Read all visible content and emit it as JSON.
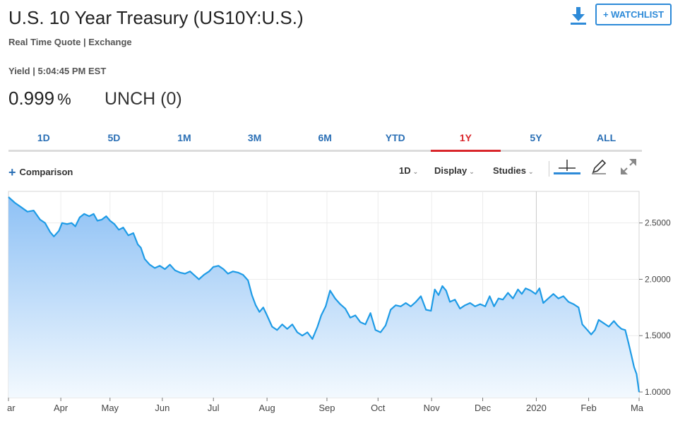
{
  "header": {
    "title": "U.S. 10 Year Treasury (US10Y:U.S.)",
    "subtitle": "Real Time Quote | Exchange",
    "watchlist_label": "+ WATCHLIST",
    "download_icon": "download-icon"
  },
  "quote": {
    "yield_time": "Yield | 5:04:45 PM EST",
    "price": "0.999",
    "unit": "%",
    "change": "UNCH (0)"
  },
  "tabs": [
    {
      "label": "1D"
    },
    {
      "label": "5D"
    },
    {
      "label": "1M"
    },
    {
      "label": "3M"
    },
    {
      "label": "6M"
    },
    {
      "label": "YTD"
    },
    {
      "label": "1Y",
      "active": true
    },
    {
      "label": "5Y"
    },
    {
      "label": "ALL"
    }
  ],
  "toolbar": {
    "comparison_label": "Comparison",
    "interval_label": "1D",
    "display_label": "Display",
    "studies_label": "Studies",
    "crosshair_icon": "crosshair-icon",
    "draw_icon": "pencil-icon",
    "expand_icon": "expand-icon"
  },
  "colors": {
    "line": "#1e9be6",
    "fill_top": "#8ec1f5",
    "fill_bottom": "#f3f9fe",
    "accent": "#2d8ad8",
    "active_tab": "#d9262b"
  },
  "chart_data": {
    "type": "area",
    "ylim": [
      0.95,
      2.78
    ],
    "yticks": [
      1.0,
      1.5,
      2.0,
      2.5
    ],
    "ytick_labels": [
      "1.0000",
      "1.5000",
      "2.0000",
      "2.5000"
    ],
    "xticks": [
      {
        "label": "ar",
        "t": 0
      },
      {
        "label": "Apr",
        "t": 0.083
      },
      {
        "label": "May",
        "t": 0.161
      },
      {
        "label": "Jun",
        "t": 0.244
      },
      {
        "label": "Jul",
        "t": 0.325
      },
      {
        "label": "Aug",
        "t": 0.41
      },
      {
        "label": "Sep",
        "t": 0.505
      },
      {
        "label": "Oct",
        "t": 0.586
      },
      {
        "label": "Nov",
        "t": 0.671
      },
      {
        "label": "Dec",
        "t": 0.752
      },
      {
        "label": "2020",
        "t": 0.837
      },
      {
        "label": "Feb",
        "t": 0.92
      },
      {
        "label": "Ma",
        "t": 1.0
      }
    ],
    "series": [
      {
        "values": [
          [
            0.0,
            2.73
          ],
          [
            0.01,
            2.68
          ],
          [
            0.02,
            2.64
          ],
          [
            0.03,
            2.6
          ],
          [
            0.04,
            2.61
          ],
          [
            0.05,
            2.53
          ],
          [
            0.058,
            2.5
          ],
          [
            0.066,
            2.42
          ],
          [
            0.072,
            2.38
          ],
          [
            0.08,
            2.43
          ],
          [
            0.085,
            2.5
          ],
          [
            0.093,
            2.49
          ],
          [
            0.1,
            2.5
          ],
          [
            0.106,
            2.47
          ],
          [
            0.113,
            2.55
          ],
          [
            0.12,
            2.58
          ],
          [
            0.128,
            2.56
          ],
          [
            0.135,
            2.58
          ],
          [
            0.141,
            2.52
          ],
          [
            0.148,
            2.53
          ],
          [
            0.155,
            2.56
          ],
          [
            0.161,
            2.52
          ],
          [
            0.168,
            2.49
          ],
          [
            0.175,
            2.44
          ],
          [
            0.182,
            2.46
          ],
          [
            0.19,
            2.39
          ],
          [
            0.198,
            2.41
          ],
          [
            0.205,
            2.31
          ],
          [
            0.21,
            2.28
          ],
          [
            0.216,
            2.18
          ],
          [
            0.224,
            2.13
          ],
          [
            0.232,
            2.1
          ],
          [
            0.24,
            2.12
          ],
          [
            0.248,
            2.09
          ],
          [
            0.256,
            2.13
          ],
          [
            0.264,
            2.08
          ],
          [
            0.272,
            2.06
          ],
          [
            0.28,
            2.05
          ],
          [
            0.288,
            2.07
          ],
          [
            0.296,
            2.03
          ],
          [
            0.302,
            2.0
          ],
          [
            0.31,
            2.04
          ],
          [
            0.318,
            2.07
          ],
          [
            0.325,
            2.11
          ],
          [
            0.333,
            2.12
          ],
          [
            0.341,
            2.09
          ],
          [
            0.348,
            2.05
          ],
          [
            0.356,
            2.07
          ],
          [
            0.364,
            2.06
          ],
          [
            0.372,
            2.04
          ],
          [
            0.38,
            1.99
          ],
          [
            0.386,
            1.86
          ],
          [
            0.392,
            1.77
          ],
          [
            0.398,
            1.71
          ],
          [
            0.404,
            1.75
          ],
          [
            0.41,
            1.68
          ],
          [
            0.418,
            1.58
          ],
          [
            0.426,
            1.55
          ],
          [
            0.434,
            1.6
          ],
          [
            0.442,
            1.56
          ],
          [
            0.45,
            1.6
          ],
          [
            0.458,
            1.53
          ],
          [
            0.466,
            1.5
          ],
          [
            0.474,
            1.53
          ],
          [
            0.482,
            1.47
          ],
          [
            0.49,
            1.58
          ],
          [
            0.496,
            1.68
          ],
          [
            0.503,
            1.76
          ],
          [
            0.51,
            1.9
          ],
          [
            0.518,
            1.83
          ],
          [
            0.526,
            1.78
          ],
          [
            0.534,
            1.74
          ],
          [
            0.542,
            1.66
          ],
          [
            0.55,
            1.68
          ],
          [
            0.558,
            1.62
          ],
          [
            0.566,
            1.6
          ],
          [
            0.574,
            1.7
          ],
          [
            0.582,
            1.55
          ],
          [
            0.59,
            1.53
          ],
          [
            0.598,
            1.59
          ],
          [
            0.606,
            1.73
          ],
          [
            0.614,
            1.77
          ],
          [
            0.622,
            1.76
          ],
          [
            0.63,
            1.79
          ],
          [
            0.638,
            1.76
          ],
          [
            0.646,
            1.8
          ],
          [
            0.654,
            1.85
          ],
          [
            0.662,
            1.73
          ],
          [
            0.67,
            1.72
          ],
          [
            0.676,
            1.91
          ],
          [
            0.682,
            1.86
          ],
          [
            0.688,
            1.94
          ],
          [
            0.694,
            1.9
          ],
          [
            0.7,
            1.8
          ],
          [
            0.708,
            1.82
          ],
          [
            0.716,
            1.74
          ],
          [
            0.724,
            1.77
          ],
          [
            0.732,
            1.79
          ],
          [
            0.74,
            1.76
          ],
          [
            0.748,
            1.78
          ],
          [
            0.756,
            1.76
          ],
          [
            0.763,
            1.85
          ],
          [
            0.77,
            1.76
          ],
          [
            0.777,
            1.83
          ],
          [
            0.784,
            1.82
          ],
          [
            0.792,
            1.88
          ],
          [
            0.8,
            1.83
          ],
          [
            0.808,
            1.91
          ],
          [
            0.814,
            1.87
          ],
          [
            0.82,
            1.92
          ],
          [
            0.828,
            1.9
          ],
          [
            0.836,
            1.87
          ],
          [
            0.842,
            1.92
          ],
          [
            0.848,
            1.79
          ],
          [
            0.856,
            1.83
          ],
          [
            0.864,
            1.87
          ],
          [
            0.872,
            1.83
          ],
          [
            0.88,
            1.85
          ],
          [
            0.888,
            1.8
          ],
          [
            0.896,
            1.78
          ],
          [
            0.904,
            1.75
          ],
          [
            0.91,
            1.6
          ],
          [
            0.918,
            1.55
          ],
          [
            0.924,
            1.51
          ],
          [
            0.93,
            1.55
          ],
          [
            0.936,
            1.64
          ],
          [
            0.944,
            1.61
          ],
          [
            0.952,
            1.58
          ],
          [
            0.96,
            1.63
          ],
          [
            0.966,
            1.59
          ],
          [
            0.972,
            1.56
          ],
          [
            0.978,
            1.55
          ],
          [
            0.983,
            1.44
          ],
          [
            0.988,
            1.32
          ],
          [
            0.992,
            1.22
          ],
          [
            0.996,
            1.16
          ],
          [
            1.0,
            0.999
          ]
        ]
      }
    ]
  }
}
